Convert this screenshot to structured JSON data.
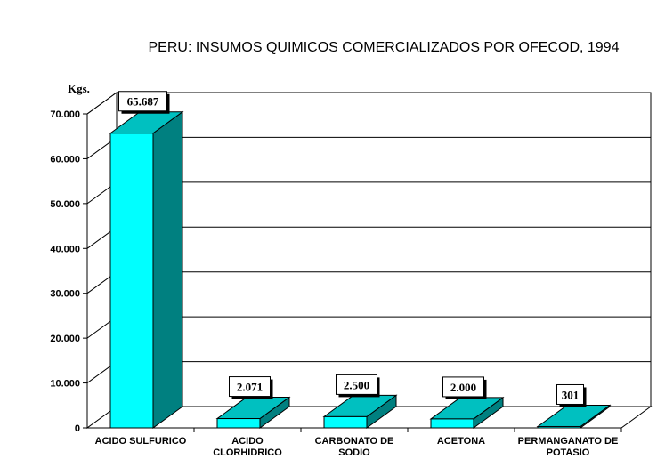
{
  "chart_data": {
    "type": "bar",
    "title": "PERU: INSUMOS QUIMICOS COMERCIALIZADOS POR OFECOD, 1994",
    "ylabel": "Kgs.",
    "xlabel": "",
    "ylim": [
      0,
      70000
    ],
    "yticks": [
      "0",
      "10.000",
      "20.000",
      "30.000",
      "40.000",
      "50.000",
      "60.000",
      "70.000"
    ],
    "categories": [
      [
        "ACIDO SULFURICO"
      ],
      [
        "ACIDO",
        "CLORHIDRICO"
      ],
      [
        "CARBONATO DE",
        "SODIO"
      ],
      [
        "ACETONA"
      ],
      [
        "PERMANGANATO DE",
        "POTASIO"
      ]
    ],
    "values": [
      65687,
      2071,
      2500,
      2000,
      301
    ],
    "data_labels": [
      "65.687",
      "2.071",
      "2.500",
      "2.000",
      "301"
    ],
    "grid": true,
    "style": "3d",
    "colors": {
      "bar_front": "#00ffff",
      "bar_side": "#008080",
      "bar_top": "#00c0c0"
    }
  }
}
